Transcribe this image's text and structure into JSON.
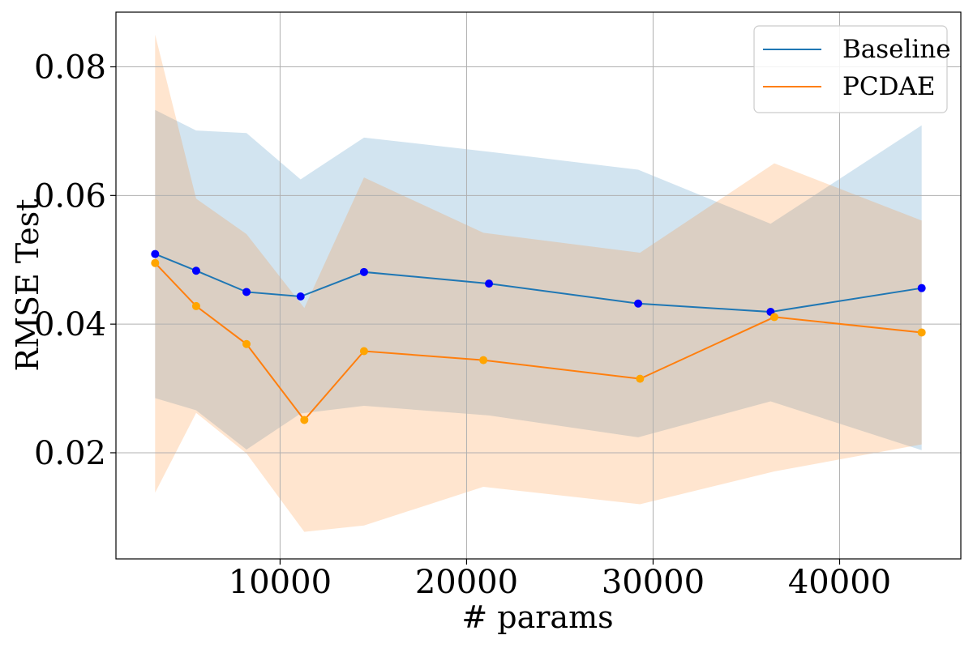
{
  "chart_data": {
    "type": "line",
    "title": "",
    "xlabel": "# params",
    "ylabel": "RMSE Test",
    "xlim": [
      1200,
      46500
    ],
    "ylim": [
      0.0035,
      0.0885
    ],
    "x_ticks": [
      10000,
      20000,
      30000,
      40000
    ],
    "x_tick_labels": [
      "10000",
      "20000",
      "30000",
      "40000"
    ],
    "y_ticks": [
      0.02,
      0.04,
      0.06,
      0.08
    ],
    "y_tick_labels": [
      "0.02",
      "0.04",
      "0.06",
      "0.08"
    ],
    "grid": true,
    "legend": "top-right",
    "series": [
      {
        "name": "Baseline",
        "line_color": "#1f77b4",
        "marker_color": "#0000ff",
        "band_color": "#1f77b4",
        "x": [
          3300,
          5500,
          8200,
          11100,
          14500,
          21200,
          29200,
          36300,
          44400
        ],
        "values": [
          0.0509,
          0.0483,
          0.045,
          0.0443,
          0.0481,
          0.0463,
          0.0432,
          0.0419,
          0.0456
        ],
        "upper": [
          0.0733,
          0.0701,
          0.0697,
          0.0625,
          0.069,
          0.0668,
          0.064,
          0.0556,
          0.0709
        ],
        "lower": [
          0.0285,
          0.0266,
          0.0205,
          0.0261,
          0.0273,
          0.0258,
          0.0224,
          0.028,
          0.0204
        ]
      },
      {
        "name": "PCDAE",
        "line_color": "#ff7f0e",
        "marker_color": "#ffa500",
        "band_color": "#ff7f0e",
        "x": [
          3300,
          5500,
          8200,
          11300,
          14500,
          20900,
          29300,
          36500,
          44400
        ],
        "values": [
          0.0495,
          0.0428,
          0.0369,
          0.0251,
          0.0358,
          0.0344,
          0.0315,
          0.0411,
          0.0387
        ],
        "upper": [
          0.085,
          0.0595,
          0.054,
          0.0425,
          0.0628,
          0.0542,
          0.0511,
          0.065,
          0.0561
        ],
        "lower": [
          0.0138,
          0.0262,
          0.0199,
          0.0077,
          0.0087,
          0.0147,
          0.012,
          0.0171,
          0.0213
        ]
      }
    ]
  }
}
